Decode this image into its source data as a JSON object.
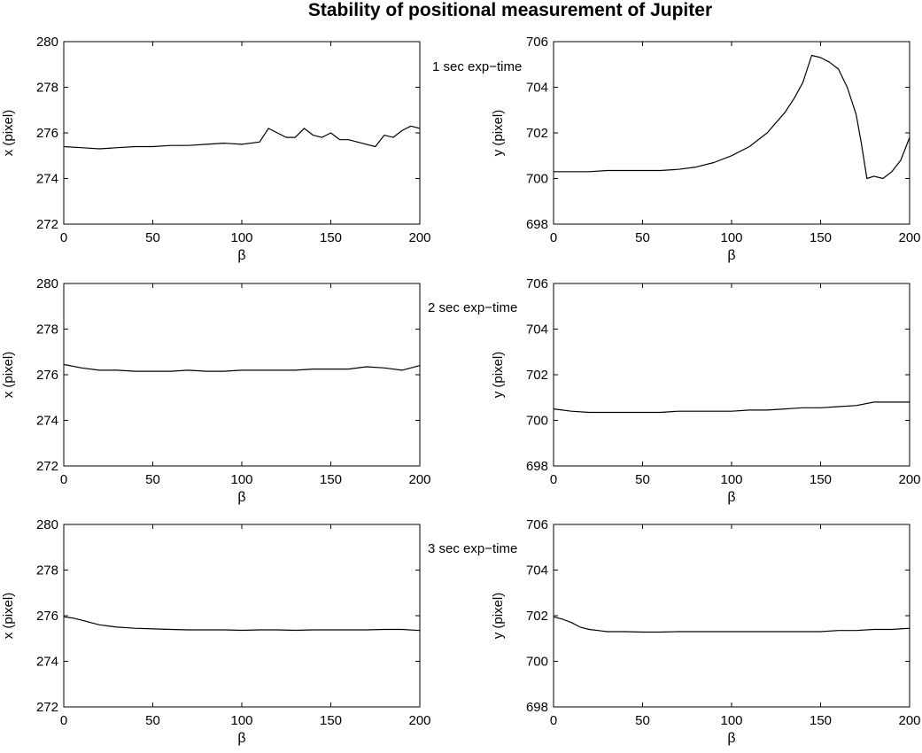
{
  "title": "Stability of positional measurement of Jupiter",
  "exposure_labels": [
    "1 sec exp−time",
    "2 sec exp−time",
    "3 sec exp−time"
  ],
  "chart_data": [
    {
      "type": "line",
      "id": "x-1s",
      "xlabel": "β",
      "ylabel": "x  (pixel)",
      "xlim": [
        0,
        200
      ],
      "ylim": [
        272,
        280
      ],
      "xticks": [
        "0",
        "50",
        "100",
        "150",
        "200"
      ],
      "yticks": [
        "272",
        "274",
        "276",
        "278",
        "280"
      ],
      "x": [
        0,
        10,
        20,
        30,
        40,
        50,
        60,
        70,
        80,
        90,
        100,
        110,
        115,
        120,
        125,
        130,
        135,
        140,
        145,
        150,
        155,
        160,
        165,
        170,
        175,
        180,
        185,
        190,
        195,
        200
      ],
      "values": [
        275.4,
        275.35,
        275.3,
        275.35,
        275.4,
        275.4,
        275.45,
        275.45,
        275.5,
        275.55,
        275.5,
        275.6,
        276.2,
        276.0,
        275.8,
        275.8,
        276.2,
        275.9,
        275.8,
        276.0,
        275.7,
        275.7,
        275.6,
        275.5,
        275.4,
        275.9,
        275.8,
        276.1,
        276.3,
        276.2
      ],
      "grid": false
    },
    {
      "type": "line",
      "id": "y-1s",
      "xlabel": "β",
      "ylabel": "y  (pixel)",
      "xlim": [
        0,
        200
      ],
      "ylim": [
        698,
        706
      ],
      "xticks": [
        "0",
        "50",
        "100",
        "150",
        "200"
      ],
      "yticks": [
        "698",
        "700",
        "702",
        "704",
        "706"
      ],
      "x": [
        0,
        10,
        20,
        30,
        40,
        50,
        60,
        70,
        80,
        90,
        100,
        110,
        120,
        130,
        135,
        140,
        145,
        150,
        155,
        160,
        165,
        170,
        173,
        176,
        180,
        185,
        190,
        195,
        200
      ],
      "values": [
        700.3,
        700.3,
        700.3,
        700.35,
        700.35,
        700.35,
        700.35,
        700.4,
        700.5,
        700.7,
        701.0,
        701.4,
        702.0,
        702.9,
        703.5,
        704.2,
        705.4,
        705.3,
        705.1,
        704.8,
        704.0,
        702.8,
        701.5,
        700.0,
        700.1,
        700.0,
        700.3,
        700.8,
        701.8
      ],
      "grid": false
    },
    {
      "type": "line",
      "id": "x-2s",
      "xlabel": "β",
      "ylabel": "x  (pixel)",
      "xlim": [
        0,
        200
      ],
      "ylim": [
        272,
        280
      ],
      "xticks": [
        "0",
        "50",
        "100",
        "150",
        "200"
      ],
      "yticks": [
        "272",
        "274",
        "276",
        "278",
        "280"
      ],
      "x": [
        0,
        10,
        20,
        30,
        40,
        50,
        60,
        70,
        80,
        90,
        100,
        110,
        120,
        130,
        140,
        150,
        160,
        170,
        180,
        190,
        195,
        200
      ],
      "values": [
        276.45,
        276.3,
        276.2,
        276.2,
        276.15,
        276.15,
        276.15,
        276.2,
        276.15,
        276.15,
        276.2,
        276.2,
        276.2,
        276.2,
        276.25,
        276.25,
        276.25,
        276.35,
        276.3,
        276.2,
        276.3,
        276.4
      ],
      "grid": false
    },
    {
      "type": "line",
      "id": "y-2s",
      "xlabel": "β",
      "ylabel": "y  (pixel)",
      "xlim": [
        0,
        200
      ],
      "ylim": [
        698,
        706
      ],
      "xticks": [
        "0",
        "50",
        "100",
        "150",
        "200"
      ],
      "yticks": [
        "698",
        "700",
        "702",
        "704",
        "706"
      ],
      "x": [
        0,
        10,
        20,
        30,
        40,
        50,
        60,
        70,
        80,
        90,
        100,
        110,
        120,
        130,
        140,
        150,
        160,
        170,
        180,
        190,
        200
      ],
      "values": [
        700.5,
        700.4,
        700.35,
        700.35,
        700.35,
        700.35,
        700.35,
        700.4,
        700.4,
        700.4,
        700.4,
        700.45,
        700.45,
        700.5,
        700.55,
        700.55,
        700.6,
        700.65,
        700.8,
        700.8,
        700.8
      ],
      "grid": false
    },
    {
      "type": "line",
      "id": "x-3s",
      "xlabel": "β",
      "ylabel": "x  (pixel)",
      "xlim": [
        0,
        200
      ],
      "ylim": [
        272,
        280
      ],
      "xticks": [
        "0",
        "50",
        "100",
        "150",
        "200"
      ],
      "yticks": [
        "272",
        "274",
        "276",
        "278",
        "280"
      ],
      "x": [
        0,
        5,
        10,
        15,
        20,
        25,
        30,
        40,
        50,
        60,
        70,
        80,
        90,
        100,
        110,
        120,
        130,
        140,
        150,
        160,
        170,
        180,
        190,
        200
      ],
      "values": [
        275.95,
        275.9,
        275.8,
        275.7,
        275.6,
        275.55,
        275.5,
        275.45,
        275.42,
        275.4,
        275.38,
        275.38,
        275.38,
        275.36,
        275.38,
        275.38,
        275.36,
        275.38,
        275.38,
        275.38,
        275.38,
        275.4,
        275.4,
        275.35
      ],
      "grid": false
    },
    {
      "type": "line",
      "id": "y-3s",
      "xlabel": "β",
      "ylabel": "y  (pixel)",
      "xlim": [
        0,
        200
      ],
      "ylim": [
        698,
        706
      ],
      "xticks": [
        "0",
        "50",
        "100",
        "150",
        "200"
      ],
      "yticks": [
        "698",
        "700",
        "702",
        "704",
        "706"
      ],
      "x": [
        0,
        5,
        10,
        15,
        20,
        25,
        30,
        40,
        50,
        60,
        70,
        80,
        90,
        100,
        110,
        120,
        130,
        140,
        150,
        160,
        170,
        180,
        190,
        200
      ],
      "values": [
        701.95,
        701.85,
        701.7,
        701.5,
        701.4,
        701.35,
        701.3,
        701.3,
        701.28,
        701.28,
        701.3,
        701.3,
        701.3,
        701.3,
        701.3,
        701.3,
        701.3,
        701.3,
        701.3,
        701.35,
        701.35,
        701.4,
        701.4,
        701.45
      ],
      "grid": false
    }
  ]
}
